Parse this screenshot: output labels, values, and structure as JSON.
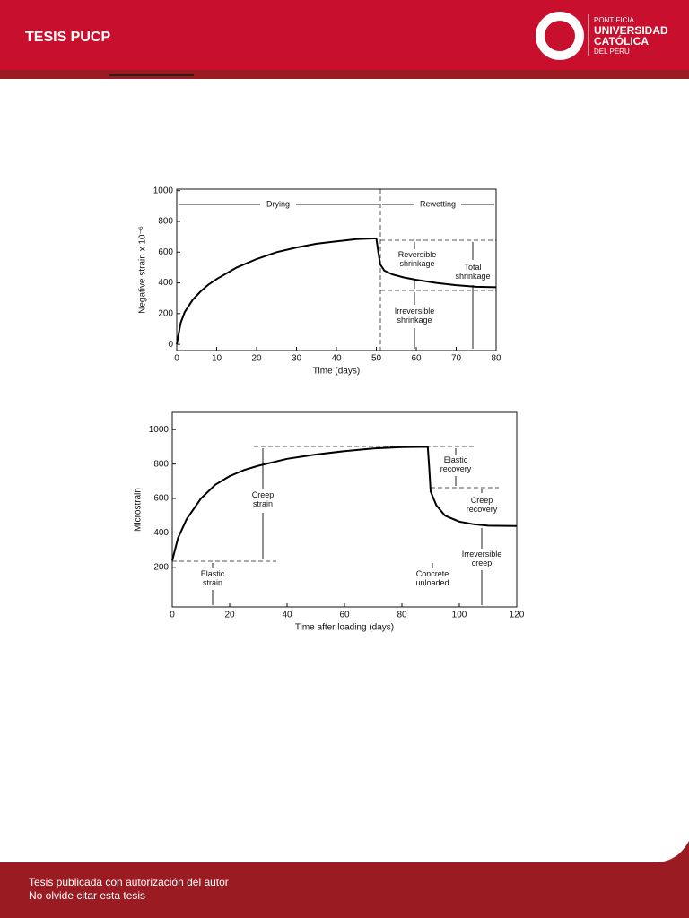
{
  "header": {
    "title": "TESIS PUCP",
    "logo_lines": [
      "PONTIFICIA",
      "UNIVERSIDAD",
      "CATÓLICA",
      "DEL PERÚ"
    ]
  },
  "footer": {
    "lines": [
      "Tesis publicada con autorización del autor",
      "No olvide citar esta tesis"
    ]
  },
  "chart_data": [
    {
      "type": "line",
      "x_label": "Time (days)",
      "y_label": "Negative strain x 10⁻⁶",
      "x": [
        0,
        1,
        2,
        4,
        6,
        8,
        10,
        15,
        20,
        25,
        30,
        35,
        40,
        45,
        50,
        50.5,
        51,
        52,
        54,
        57,
        60,
        65,
        70,
        75,
        80
      ],
      "values": [
        0,
        140,
        210,
        290,
        345,
        390,
        425,
        500,
        555,
        600,
        630,
        655,
        670,
        685,
        690,
        600,
        520,
        480,
        455,
        435,
        420,
        400,
        385,
        375,
        372
      ],
      "color": "#000000",
      "xlim": [
        0,
        80
      ],
      "ylim": [
        -40,
        1010
      ],
      "xticks": [
        0,
        10,
        20,
        30,
        40,
        50,
        60,
        70,
        80
      ],
      "yticks": [
        0,
        200,
        400,
        600,
        800,
        1000
      ],
      "annotations": [
        "Drying",
        "Rewetting",
        "Reversible shrinkage",
        "Total shrinkage",
        "Irreversible shrinkage"
      ]
    },
    {
      "type": "line",
      "x_label": "Time after loading (days)",
      "y_label": "Microstrain",
      "x": [
        0,
        2,
        5,
        10,
        15,
        20,
        25,
        30,
        40,
        50,
        60,
        70,
        80,
        89,
        89.5,
        90,
        92,
        95,
        100,
        105,
        110,
        120
      ],
      "values": [
        240,
        370,
        480,
        600,
        680,
        730,
        765,
        790,
        830,
        855,
        875,
        890,
        898,
        900,
        780,
        640,
        560,
        500,
        465,
        450,
        442,
        440
      ],
      "color": "#000000",
      "xlim": [
        0,
        120
      ],
      "ylim": [
        -30,
        1100
      ],
      "xticks": [
        0,
        20,
        40,
        60,
        80,
        100,
        120
      ],
      "yticks": [
        200,
        400,
        600,
        800,
        1000
      ],
      "annotations": [
        "Creep strain",
        "Elastic strain",
        "Concrete unloaded",
        "Elastic recovery",
        "Creep recovery",
        "Irreversible creep"
      ]
    }
  ]
}
